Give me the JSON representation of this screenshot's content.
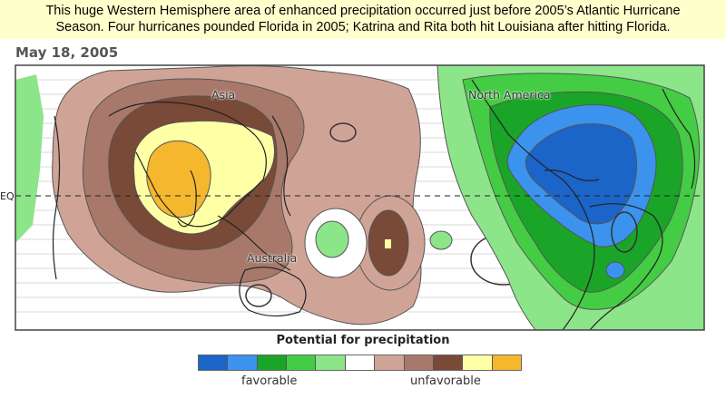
{
  "caption": {
    "line1": "This huge Western Hemisphere area of enhanced precipitation occurred just before 2005’s Atlantic Hurricane",
    "line2": "Season.  Four hurricanes pounded Florida in 2005;  Katrina and Rita both hit Louisiana after hitting Florida."
  },
  "date": "May 18, 2005",
  "map": {
    "equator_label": "EQ",
    "labels": {
      "asia": "Asia",
      "australia": "Australia",
      "north_america": "North America"
    },
    "colors": {
      "water": "#ffffff",
      "dark_brown": "#7a4a38",
      "mid_brown": "#a8796a",
      "light_brown": "#cfa497",
      "pale_yellow": "#ffffa6",
      "gold": "#f5b72e",
      "light_green": "#8de58a",
      "mid_green": "#44cc44",
      "dark_green": "#1aa528",
      "light_blue": "#3b93ee",
      "dark_blue": "#1b64c8"
    }
  },
  "legend": {
    "title": "Potential for precipitation",
    "favorable_label": "favorable",
    "unfavorable_label": "unfavorable",
    "colors": [
      "#1b64c8",
      "#3b93ee",
      "#1aa528",
      "#44cc44",
      "#8de58a",
      "#ffffff",
      "#cfa497",
      "#a8796a",
      "#7a4a38",
      "#ffffa6",
      "#f5b72e"
    ]
  }
}
